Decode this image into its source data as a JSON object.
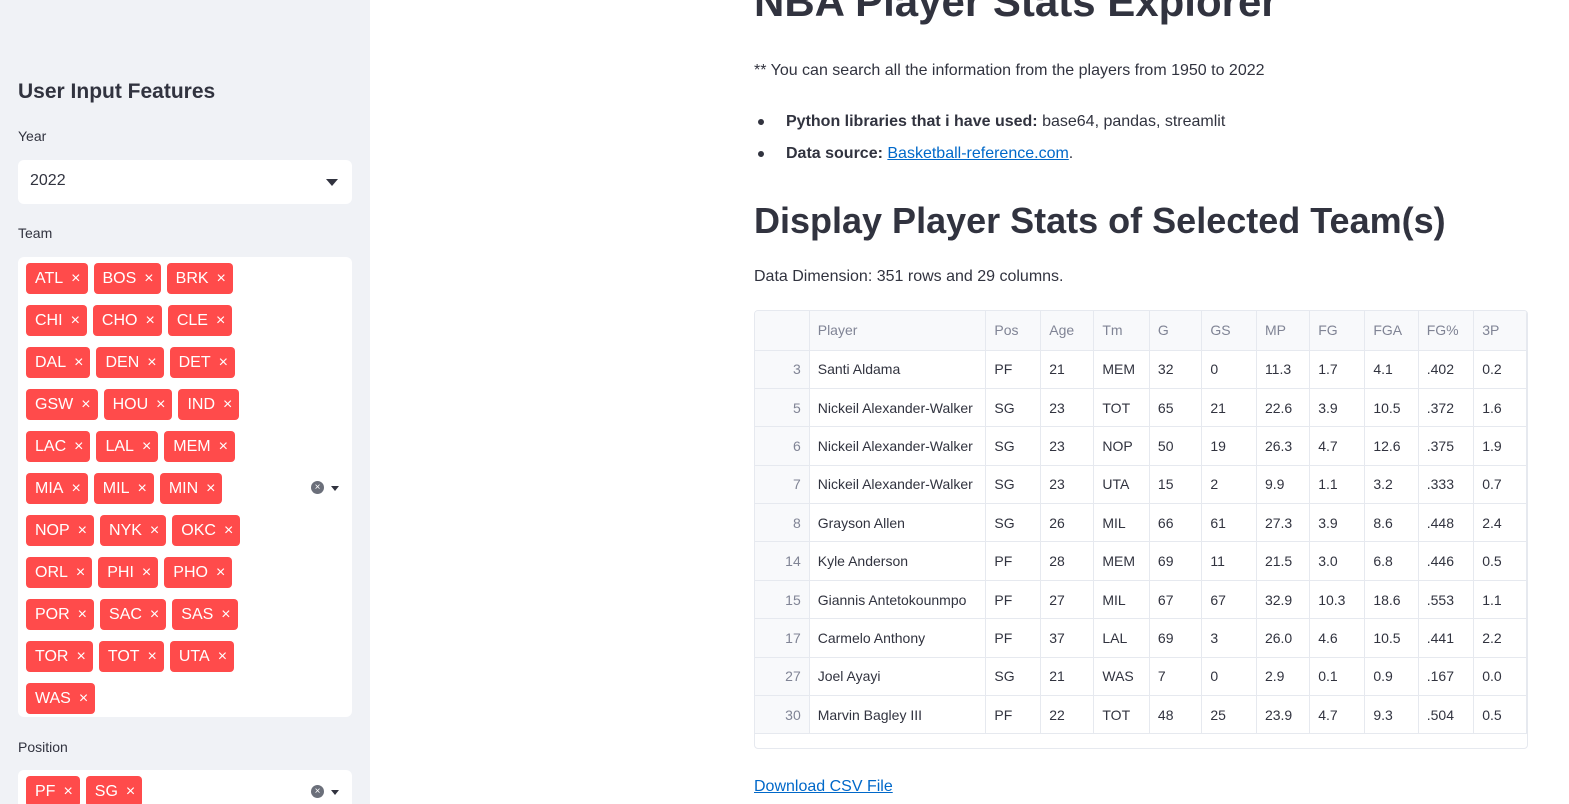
{
  "sidebar": {
    "title": "User Input Features",
    "year": {
      "label": "Year",
      "value": "2022"
    },
    "team": {
      "label": "Team",
      "tags": [
        "ATL",
        "BOS",
        "BRK",
        "CHI",
        "CHO",
        "CLE",
        "DAL",
        "DEN",
        "DET",
        "GSW",
        "HOU",
        "IND",
        "LAC",
        "LAL",
        "MEM",
        "MIA",
        "MIL",
        "MIN",
        "NOP",
        "NYK",
        "OKC",
        "ORL",
        "PHI",
        "PHO",
        "POR",
        "SAC",
        "SAS",
        "TOR",
        "TOT",
        "UTA",
        "WAS"
      ]
    },
    "position": {
      "label": "Position",
      "tags": [
        "PF",
        "SG"
      ]
    },
    "tag_remove": "×",
    "clear_icon": "×"
  },
  "main": {
    "title": "NBA Player Stats Explorer",
    "intro": "** You can search all the information from the players from 1950 to 2022",
    "bullets": {
      "libs_label": "Python libraries that i have used:",
      "libs_value": " base64, pandas, streamlit",
      "source_label": "Data source:",
      "source_link": "Basketball-reference.com",
      "source_end": "."
    },
    "section_title": "Display Player Stats of Selected Team(s)",
    "dimension": "Data Dimension: 351 rows and 29 columns.",
    "download": "Download CSV File"
  },
  "table": {
    "columns": [
      "",
      "Player",
      "Pos",
      "Age",
      "Tm",
      "G",
      "GS",
      "MP",
      "FG",
      "FGA",
      "FG%",
      "3P"
    ],
    "rows": [
      [
        "3",
        "Santi Aldama",
        "PF",
        "21",
        "MEM",
        "32",
        "0",
        "11.3",
        "1.7",
        "4.1",
        ".402",
        "0.2"
      ],
      [
        "5",
        "Nickeil Alexander-Walker",
        "SG",
        "23",
        "TOT",
        "65",
        "21",
        "22.6",
        "3.9",
        "10.5",
        ".372",
        "1.6"
      ],
      [
        "6",
        "Nickeil Alexander-Walker",
        "SG",
        "23",
        "NOP",
        "50",
        "19",
        "26.3",
        "4.7",
        "12.6",
        ".375",
        "1.9"
      ],
      [
        "7",
        "Nickeil Alexander-Walker",
        "SG",
        "23",
        "UTA",
        "15",
        "2",
        "9.9",
        "1.1",
        "3.2",
        ".333",
        "0.7"
      ],
      [
        "8",
        "Grayson Allen",
        "SG",
        "26",
        "MIL",
        "66",
        "61",
        "27.3",
        "3.9",
        "8.6",
        ".448",
        "2.4"
      ],
      [
        "14",
        "Kyle Anderson",
        "PF",
        "28",
        "MEM",
        "69",
        "11",
        "21.5",
        "3.0",
        "6.8",
        ".446",
        "0.5"
      ],
      [
        "15",
        "Giannis Antetokounmpo",
        "PF",
        "27",
        "MIL",
        "67",
        "67",
        "32.9",
        "10.3",
        "18.6",
        ".553",
        "1.1"
      ],
      [
        "17",
        "Carmelo Anthony",
        "PF",
        "37",
        "LAL",
        "69",
        "3",
        "26.0",
        "4.6",
        "10.5",
        ".441",
        "2.2"
      ],
      [
        "27",
        "Joel Ayayi",
        "SG",
        "21",
        "WAS",
        "7",
        "0",
        "2.9",
        "0.1",
        "0.9",
        ".167",
        "0.0"
      ],
      [
        "30",
        "Marvin Bagley III",
        "PF",
        "22",
        "TOT",
        "48",
        "25",
        "23.9",
        "4.7",
        "9.3",
        ".504",
        "0.5"
      ]
    ]
  }
}
